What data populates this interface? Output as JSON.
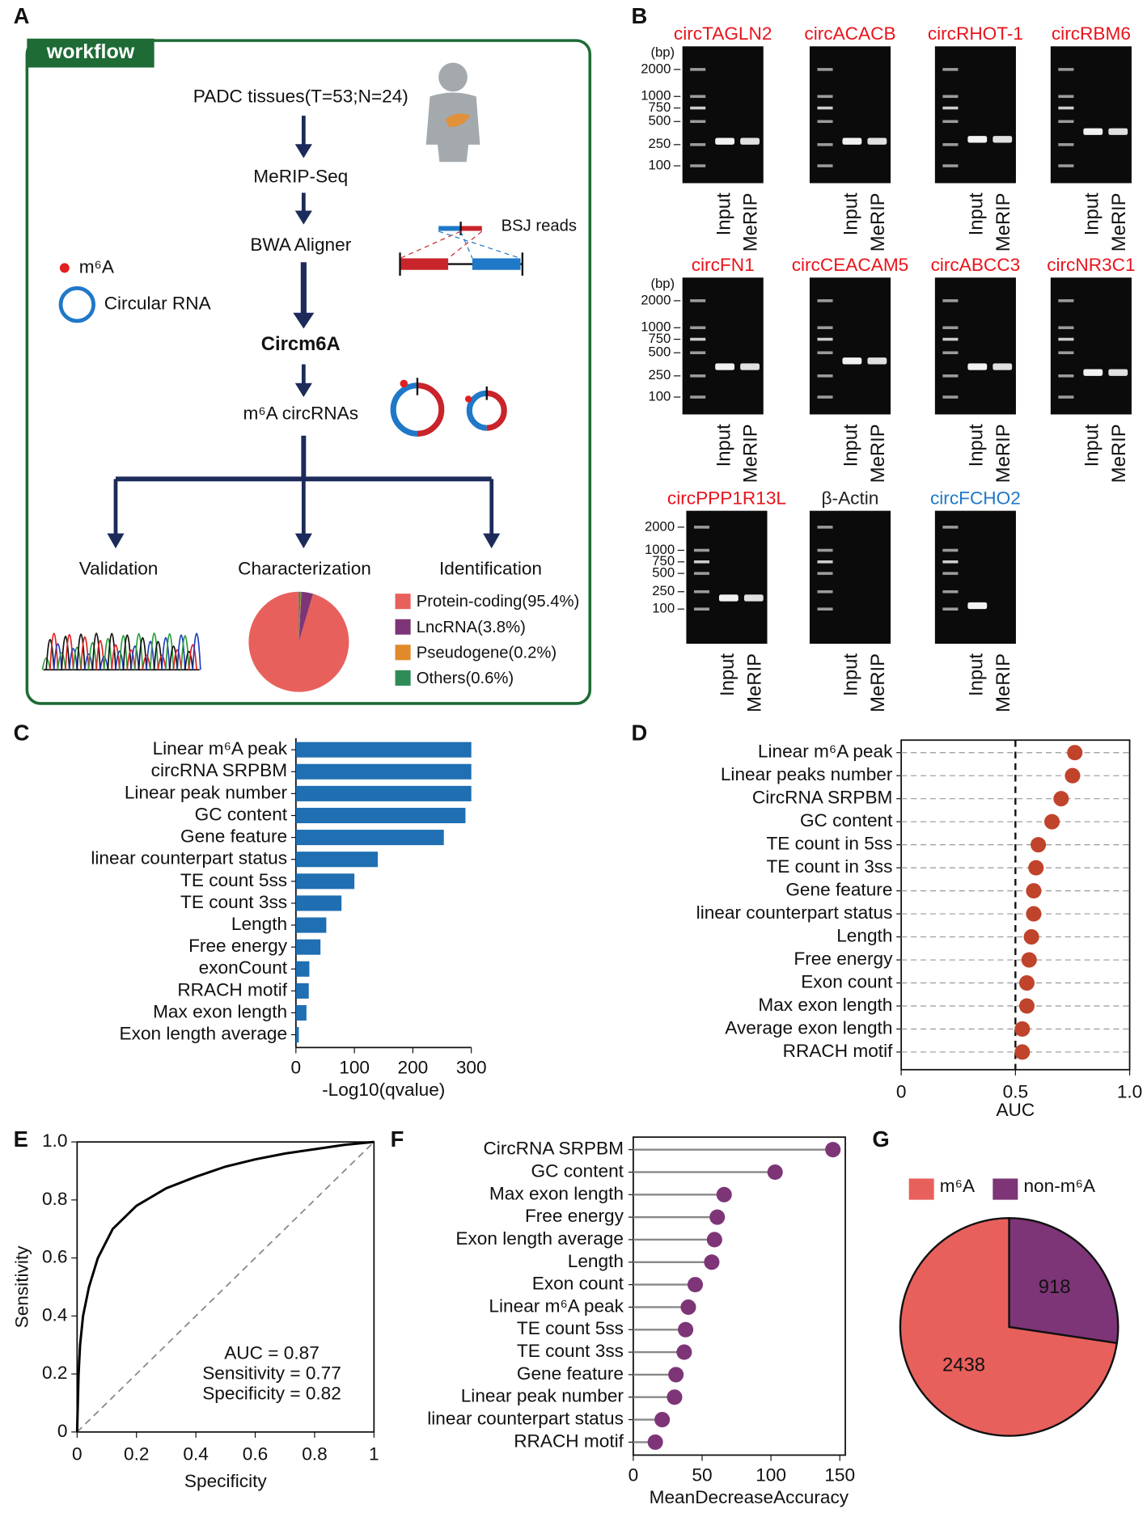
{
  "panel_labels": [
    "A",
    "B",
    "C",
    "D",
    "E",
    "F",
    "G"
  ],
  "workflow": {
    "title": "workflow",
    "steps": [
      "PADC tissues(T=53;N=24)",
      "MeRIP-Seq",
      "BWA Aligner",
      "Circm6A",
      "m⁶A circRNAs"
    ],
    "legend": [
      "m⁶A",
      "Circular RNA"
    ],
    "bsj": "BSJ reads",
    "branches": [
      "Validation",
      "Characterization",
      "Identification"
    ]
  },
  "gels": {
    "unit": "(bp)",
    "ladder": [
      "2000",
      "1000",
      "750",
      "500",
      "250",
      "100"
    ],
    "lanes": [
      "Input",
      "MeRIP"
    ],
    "items": [
      {
        "name": "circTAGLN2",
        "color": "#e8141c"
      },
      {
        "name": "circACACB",
        "color": "#e8141c"
      },
      {
        "name": "circRHOT-1",
        "color": "#e8141c"
      },
      {
        "name": "circRBM6",
        "color": "#e8141c"
      },
      {
        "name": "circFN1",
        "color": "#e8141c"
      },
      {
        "name": "circCEACAM5",
        "color": "#e8141c"
      },
      {
        "name": "circABCC3",
        "color": "#e8141c"
      },
      {
        "name": "circNR3C1",
        "color": "#e8141c"
      },
      {
        "name": "circPPP1R13L",
        "color": "#e8141c"
      },
      {
        "name": "β-Actin",
        "color": "#222222"
      },
      {
        "name": "circFCHO2",
        "color": "#1f78c8"
      }
    ]
  },
  "chart_data": [
    {
      "type": "pie",
      "categories": [
        "Protein-coding(95.4%)",
        "LncRNA(3.8%)",
        "Pseudogene(0.2%)",
        "Others(0.6%)"
      ],
      "values": [
        95.4,
        3.8,
        0.2,
        0.6
      ],
      "colors": [
        "#e8605c",
        "#7d3577",
        "#e08a2a",
        "#2e8b57"
      ],
      "outline": false
    },
    {
      "type": "barh",
      "categories": [
        "Linear m⁶A peak",
        "circRNA SRPBM",
        "Linear peak number",
        "GC content",
        "Gene feature",
        "linear counterpart status",
        "TE count 5ss",
        "TE count 3ss",
        "Length",
        "Free energy",
        "exonCount",
        "RRACH motif",
        "Max exon length",
        "Exon length average"
      ],
      "values": [
        300,
        300,
        300,
        290,
        253,
        140,
        100,
        78,
        52,
        42,
        23,
        22,
        18,
        5
      ],
      "color": "#1f6fb2",
      "xlim": [
        0,
        300
      ],
      "xticks": [
        0,
        100,
        200,
        300
      ],
      "xlabel": "-Log10(qvalue)"
    },
    {
      "type": "dot",
      "categories": [
        "Linear m⁶A peak",
        "Linear peaks number",
        "CircRNA SRPBM",
        "GC content",
        "TE count in 5ss",
        "TE count in 3ss",
        "Gene feature",
        "linear counterpart status",
        "Length",
        "Free energy",
        "Exon count",
        "Max exon length",
        "Average exon length",
        "RRACH motif"
      ],
      "values": [
        0.76,
        0.75,
        0.7,
        0.66,
        0.6,
        0.59,
        0.58,
        0.58,
        0.57,
        0.56,
        0.55,
        0.55,
        0.53,
        0.53
      ],
      "color": "#c0432b",
      "xlim": [
        0,
        1
      ],
      "xticks": [
        0,
        0.5,
        {
          "value": 1,
          "label": "1.0"
        }
      ],
      "vline": 0.5,
      "grid": true,
      "xlabel": "AUC"
    },
    {
      "type": "line",
      "x": [
        0,
        0.005,
        0.01,
        0.02,
        0.04,
        0.07,
        0.12,
        0.2,
        0.3,
        0.4,
        0.5,
        0.6,
        0.7,
        0.8,
        0.9,
        1
      ],
      "values": [
        0,
        0.2,
        0.3,
        0.4,
        0.5,
        0.6,
        0.7,
        0.78,
        0.84,
        0.88,
        0.915,
        0.94,
        0.96,
        0.975,
        0.99,
        1
      ],
      "color": "#000000",
      "xlim": [
        0,
        1
      ],
      "ylim": [
        0,
        1
      ],
      "xticks": [
        0,
        0.2,
        0.4,
        0.6,
        0.8,
        1
      ],
      "yticks": [
        0,
        0.2,
        0.4,
        0.6,
        0.8,
        {
          "value": 1,
          "label": "1.0"
        }
      ],
      "reference_diagonal": true,
      "xlabel": "Specificity",
      "ylabel": "Sensitivity",
      "annotations": [
        "AUC = 0.87",
        "Sensitivity = 0.77",
        "Specificity = 0.82"
      ]
    },
    {
      "type": "lollipop",
      "categories": [
        "CircRNA SRPBM",
        "GC content",
        "Max exon length",
        "Free energy",
        "Exon length average",
        "Length",
        "Exon count",
        "Linear m⁶A peak",
        "TE count 5ss",
        "TE count 3ss",
        "Gene feature",
        "Linear peak number",
        "linear counterpart status",
        "RRACH motif"
      ],
      "values": [
        145,
        103,
        66,
        61,
        59,
        57,
        45,
        40,
        38,
        37,
        31,
        30,
        21,
        16
      ],
      "color": "#7d3577",
      "xlim": [
        0,
        154
      ],
      "xticks": [
        0,
        50,
        100,
        150
      ],
      "xlabel": "MeanDecreaseAccuracy"
    },
    {
      "type": "pie",
      "categories": [
        "m⁶A",
        "non-m⁶A"
      ],
      "values": [
        2438,
        918
      ],
      "colors": [
        "#e8605c",
        "#7d3577"
      ],
      "outline": true
    }
  ]
}
